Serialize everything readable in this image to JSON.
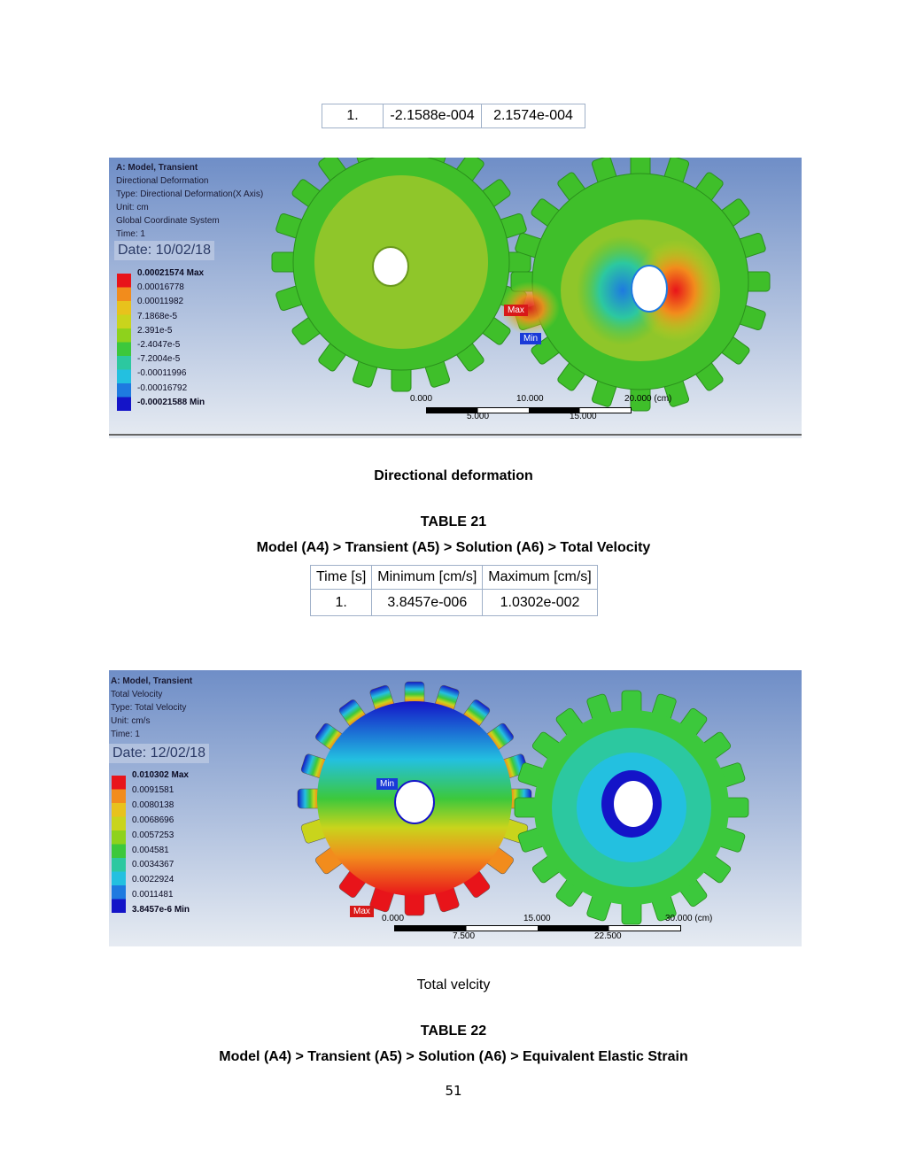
{
  "table_top": {
    "row": [
      "1.",
      "-2.1588e-004",
      "2.1574e-004"
    ]
  },
  "fig1": {
    "header": [
      "A: Model, Transient",
      "Directional Deformation",
      "Type: Directional Deformation(X Axis)",
      "Unit: cm",
      "Global Coordinate System",
      "Time: 1"
    ],
    "date": "Date: 10/02/18",
    "legend": [
      "0.00021574 Max",
      "0.00016778",
      "0.00011982",
      "7.1868e-5",
      "2.391e-5",
      "-2.4047e-5",
      "-7.2004e-5",
      "-0.00011996",
      "-0.00016792",
      "-0.00021588 Min"
    ],
    "legend_colors": [
      "#e8141a",
      "#f28c1c",
      "#e8c21c",
      "#c9d41c",
      "#8ed21c",
      "#3cc83c",
      "#2cc8a0",
      "#23c0e0",
      "#1e7ae0",
      "#1414c8"
    ],
    "max_tag": "Max",
    "min_tag": "Min",
    "scale_top": [
      "0.000",
      "10.000",
      "20.000 (cm)"
    ],
    "scale_bottom": [
      "5.000",
      "15.000"
    ]
  },
  "caption1": "Directional deformation",
  "table21": {
    "title": "TABLE 21",
    "path": "Model (A4) > Transient (A5) > Solution (A6) > Total Velocity",
    "headers": [
      "Time [s]",
      "Minimum [cm/s]",
      "Maximum [cm/s]"
    ],
    "row": [
      "1.",
      "3.8457e-006",
      "1.0302e-002"
    ]
  },
  "fig2": {
    "header": [
      "A: Model, Transient",
      "Total Velocity",
      "Type: Total Velocity",
      "Unit: cm/s",
      "Time: 1"
    ],
    "date": "Date: 12/02/18",
    "legend": [
      "0.010302 Max",
      "0.0091581",
      "0.0080138",
      "0.0068696",
      "0.0057253",
      "0.004581",
      "0.0034367",
      "0.0022924",
      "0.0011481",
      "3.8457e-6 Min"
    ],
    "legend_colors": [
      "#e8141a",
      "#f28c1c",
      "#e8c21c",
      "#c9d41c",
      "#8ed21c",
      "#3cc83c",
      "#2cc8a0",
      "#23c0e0",
      "#1e7ae0",
      "#1414c8"
    ],
    "max_tag": "Max",
    "min_tag": "Min",
    "scale_top": [
      "0.000",
      "15.000",
      "30.000 (cm)"
    ],
    "scale_bottom": [
      "7.500",
      "22.500"
    ]
  },
  "caption2": "Total velcity",
  "table22": {
    "title": "TABLE 22",
    "path": "Model (A4) > Transient (A5) > Solution (A6) > Equivalent Elastic Strain"
  },
  "page_number": "51"
}
